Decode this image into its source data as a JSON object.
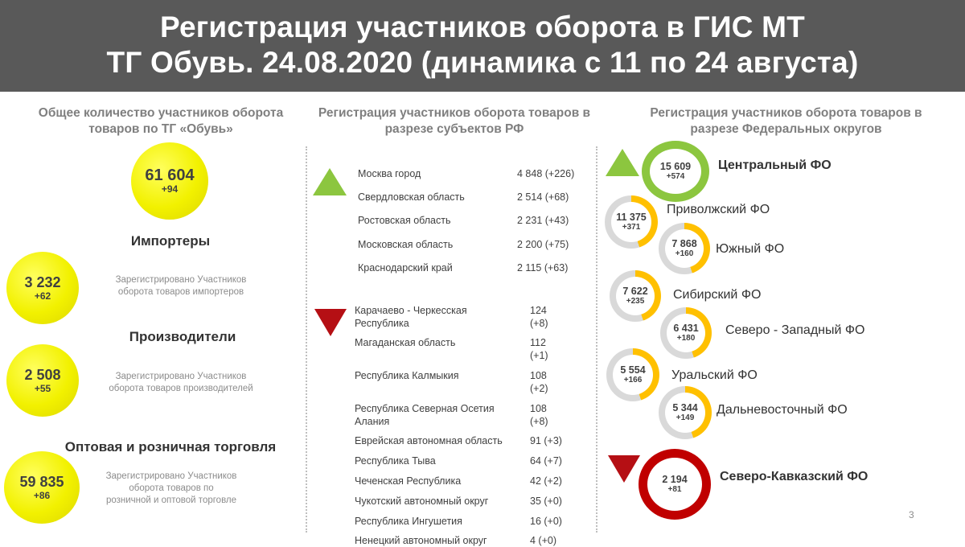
{
  "header": {
    "title_line1": "Регистрация участников оборота в ГИС МТ",
    "title_line2": "ТГ Обувь. 24.08.2020 (динамика с 11 по 24 августа)"
  },
  "left": {
    "title_line1": "Общее количество участников оборота",
    "title_line2": "товаров по ТГ «Обувь»",
    "total": {
      "value": "61 604",
      "delta": "+94"
    },
    "categories": [
      {
        "title": "Импортеры",
        "value": "3 232",
        "delta": "+62",
        "desc": [
          "Зарегистрировано Участников",
          "оборота товаров импортеров"
        ]
      },
      {
        "title": "Производители",
        "value": "2 508",
        "delta": "+55",
        "desc": [
          "Зарегистрировано Участников",
          "оборота товаров производителей"
        ]
      },
      {
        "title": "Оптовая и розничная торговля",
        "value": "59 835",
        "delta": "+86",
        "desc": [
          "Зарегистрировано Участников",
          "оборота товаров по",
          "розничной и оптовой торговле"
        ]
      }
    ]
  },
  "middle": {
    "title_line1": "Регистрация участников оборота товаров в",
    "title_line2": "разрезе субъектов РФ",
    "top_regions": [
      {
        "name": "Москва город",
        "value": "4 848 (+226)"
      },
      {
        "name": "Свердловская область",
        "value": "2 514 (+68)"
      },
      {
        "name": "Ростовская область",
        "value": "2 231 (+43)"
      },
      {
        "name": "Московская область",
        "value": "2 200 (+75)"
      },
      {
        "name": "Краснодарский край",
        "value": "2 115 (+63)"
      }
    ],
    "bottom_regions": [
      {
        "name1": "Карачаево - Черкесская",
        "name2": "Республика",
        "val1": "124",
        "val2": "(+8)"
      },
      {
        "name1": "Магаданская область",
        "name2": "",
        "val1": "112",
        "val2": "(+1)"
      },
      {
        "name1": "Республика Калмыкия",
        "name2": "",
        "val1": "108",
        "val2": "(+2)"
      },
      {
        "name1": "Республика Северная Осетия",
        "name2": "Алания",
        "val1": "108",
        "val2": "(+8)"
      },
      {
        "name1": "Еврейская автономная область",
        "name2": "",
        "val1": "91 (+3)",
        "val2": ""
      },
      {
        "name1": "Республика Тыва",
        "name2": "",
        "val1": "64 (+7)",
        "val2": ""
      },
      {
        "name1": "Чеченская Республика",
        "name2": "",
        "val1": "42 (+2)",
        "val2": ""
      },
      {
        "name1": "Чукотский автономный округ",
        "name2": "",
        "val1": "35 (+0)",
        "val2": ""
      },
      {
        "name1": "Республика Ингушетия",
        "name2": "",
        "val1": "16 (+0)",
        "val2": ""
      },
      {
        "name1": "Ненецкий автономный округ",
        "name2": "",
        "val1": "4 (+0)",
        "val2": ""
      }
    ]
  },
  "right": {
    "title_line1": "Регистрация участников оборота товаров в",
    "title_line2": "разрезе Федеральных округов",
    "okrugs": [
      {
        "name": "Центральный ФО",
        "value": "15 609",
        "delta": "+574",
        "color": "#8cc63f",
        "fill": 1.0
      },
      {
        "name": "Приволжский ФО",
        "value": "11 375",
        "delta": "+371",
        "color": "#ffc000",
        "fill": 0.45
      },
      {
        "name": "Южный ФО",
        "value": "7 868",
        "delta": "+160",
        "color": "#ffc000",
        "fill": 0.45
      },
      {
        "name": "Сибирский ФО",
        "value": "7 622",
        "delta": "+235",
        "color": "#ffc000",
        "fill": 0.45
      },
      {
        "name": "Северо - Западный ФО",
        "value": "6 431",
        "delta": "+180",
        "color": "#ffc000",
        "fill": 0.45
      },
      {
        "name": "Уральский ФО",
        "value": "5 554",
        "delta": "+166",
        "color": "#ffc000",
        "fill": 0.45
      },
      {
        "name": "Дальневосточный ФО",
        "value": "5 344",
        "delta": "+149",
        "color": "#ffc000",
        "fill": 0.45
      },
      {
        "name": "Северо-Кавказский ФО",
        "value": "2 194",
        "delta": "+81",
        "color": "#c00000",
        "fill": 1.0
      }
    ]
  },
  "page_number": "3"
}
